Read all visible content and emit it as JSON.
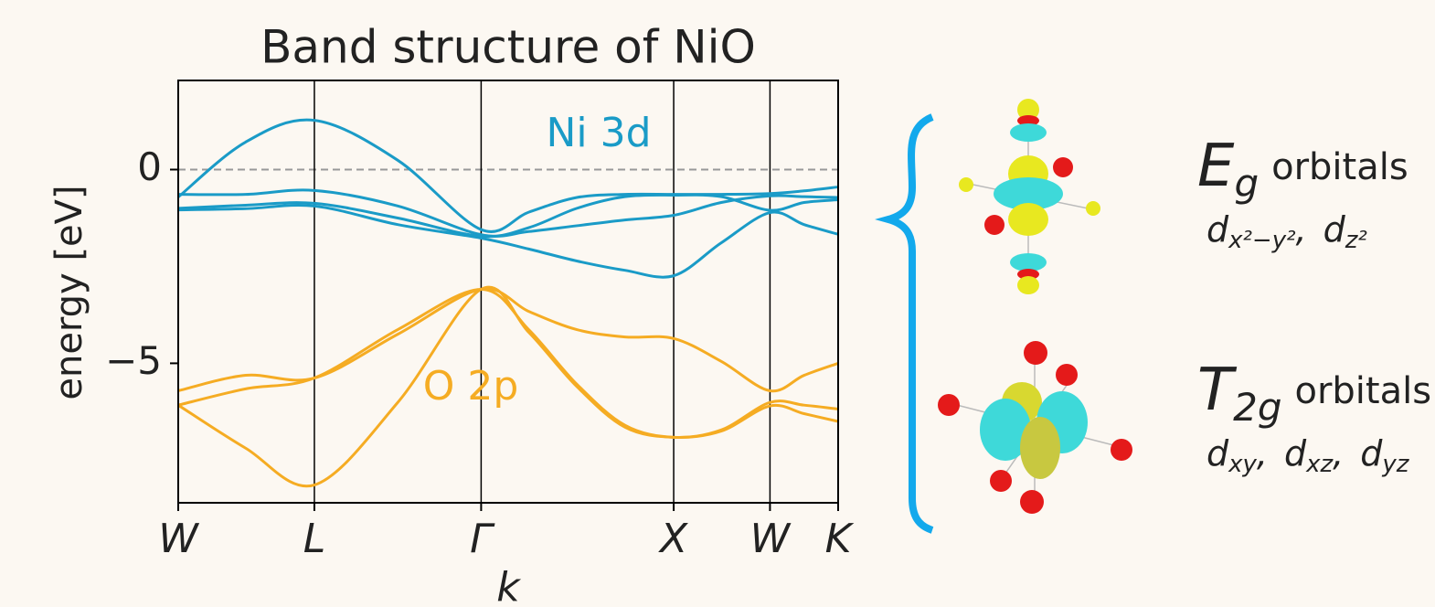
{
  "chart_data": {
    "type": "line",
    "title": "Band structure of NiO",
    "xlabel": "k",
    "ylabel": "energy [eV]",
    "x": [
      0,
      0.35,
      0.707,
      1.14,
      1.573,
      1.82,
      2.07,
      2.32,
      2.573,
      2.82,
      3.073,
      3.25,
      3.427
    ],
    "xlim": [
      0,
      3.427
    ],
    "xticks": [
      {
        "value": 0,
        "label": "W"
      },
      {
        "value": 0.707,
        "label": "L"
      },
      {
        "value": 1.573,
        "label": "Γ"
      },
      {
        "value": 2.573,
        "label": "X"
      },
      {
        "value": 3.073,
        "label": "W"
      },
      {
        "value": 3.427,
        "label": "K"
      }
    ],
    "ylim": [
      -8.6,
      2.3
    ],
    "yticks": [
      {
        "value": -5,
        "label": "−5"
      },
      0
    ],
    "reference_line": 0,
    "series": [
      {
        "name": "Ni 3d",
        "color": "#1a9bc7",
        "bands": [
          [
            -0.71,
            0.71,
            1.27,
            0.24,
            -1.55,
            -1.1,
            -0.72,
            -0.64,
            -0.64,
            -0.64,
            -0.62,
            -0.55,
            -0.45
          ],
          [
            -0.64,
            -0.64,
            -0.54,
            -0.94,
            -1.68,
            -1.6,
            -1.45,
            -1.3,
            -1.18,
            -0.85,
            -0.68,
            -0.7,
            -0.72
          ],
          [
            -1.0,
            -0.92,
            -0.87,
            -1.25,
            -1.72,
            -1.5,
            -1.0,
            -0.7,
            -0.66,
            -0.7,
            -1.05,
            -0.85,
            -0.78
          ],
          [
            -1.04,
            -1.01,
            -0.94,
            -1.42,
            -1.77,
            -2.05,
            -2.36,
            -2.6,
            -2.74,
            -1.89,
            -1.11,
            -1.42,
            -1.67
          ]
        ]
      },
      {
        "name": "O 2p",
        "color": "#f5ac23",
        "bands": [
          [
            -5.71,
            -5.31,
            -5.38,
            -4.25,
            -3.09,
            -3.66,
            -4.13,
            -4.32,
            -4.36,
            -4.95,
            -5.71,
            -5.31,
            -5.0
          ],
          [
            -6.08,
            -5.66,
            -5.38,
            -4.13,
            -3.09,
            -4.13,
            -5.54,
            -6.6,
            -6.91,
            -6.72,
            -6.01,
            -6.08,
            -6.18
          ],
          [
            -6.08,
            -7.19,
            -8.14,
            -6.01,
            -3.09,
            -4.2,
            -5.6,
            -6.65,
            -6.91,
            -6.75,
            -6.1,
            -6.3,
            -6.5
          ]
        ]
      }
    ]
  },
  "orbitals": [
    {
      "symbol": "E",
      "subscript": "g",
      "word": "orbitals",
      "members": [
        {
          "base": "d",
          "sub": "x²−y²"
        },
        {
          "base": "d",
          "sub": "z²"
        }
      ]
    },
    {
      "symbol": "T",
      "subscript": "2g",
      "word": "orbitals",
      "members": [
        {
          "base": "d",
          "sub": "xy"
        },
        {
          "base": "d",
          "sub": "xz"
        },
        {
          "base": "d",
          "sub": "yz"
        }
      ]
    }
  ]
}
